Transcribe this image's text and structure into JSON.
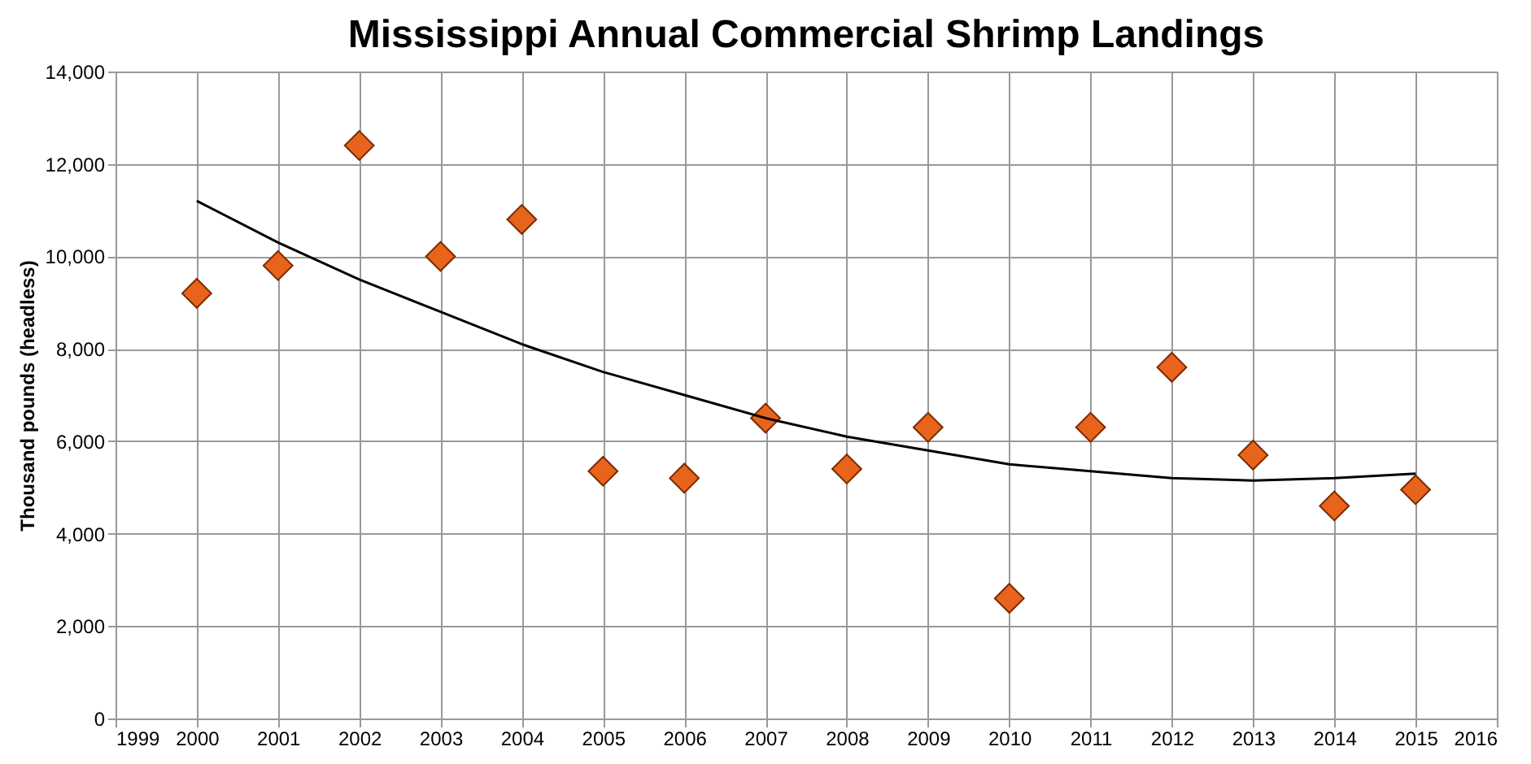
{
  "chart_data": {
    "type": "scatter",
    "title": "Mississippi Annual Commercial Shrimp Landings",
    "ylabel": "Thousand pounds (headless)",
    "x": [
      2000,
      2001,
      2002,
      2003,
      2004,
      2005,
      2006,
      2007,
      2008,
      2009,
      2010,
      2011,
      2012,
      2013,
      2014,
      2015
    ],
    "series": [
      {
        "color": "#e8641c",
        "marker": "diamond",
        "values": [
          9200,
          9800,
          12400,
          10000,
          10800,
          5350,
          5200,
          6500,
          5400,
          6300,
          2600,
          6300,
          7600,
          5700,
          4600,
          4950
        ]
      },
      {
        "type": "line",
        "color": "#000000",
        "marker": "none",
        "line_style": "solid",
        "values": [
          11200,
          10300,
          9500,
          8800,
          8100,
          7500,
          7000,
          6500,
          6100,
          5800,
          5500,
          5350,
          5200,
          5150,
          5200,
          5300
        ]
      }
    ],
    "xlim": [
      1999,
      2016
    ],
    "xticks": [
      1999,
      2000,
      2001,
      2002,
      2003,
      2004,
      2005,
      2006,
      2007,
      2008,
      2009,
      2010,
      2011,
      2012,
      2013,
      2014,
      2015,
      2016
    ],
    "ylim": [
      0,
      14000
    ],
    "yticks": [
      0,
      {
        "value": 2000,
        "label": "2,000"
      },
      {
        "value": 4000,
        "label": "4,000"
      },
      {
        "value": 6000,
        "label": "6,000"
      },
      {
        "value": 8000,
        "label": "8,000"
      },
      {
        "value": 10000,
        "label": "10,000"
      },
      {
        "value": 12000,
        "label": "12,000"
      },
      {
        "value": 14000,
        "label": "14,000"
      }
    ],
    "grid": true
  }
}
